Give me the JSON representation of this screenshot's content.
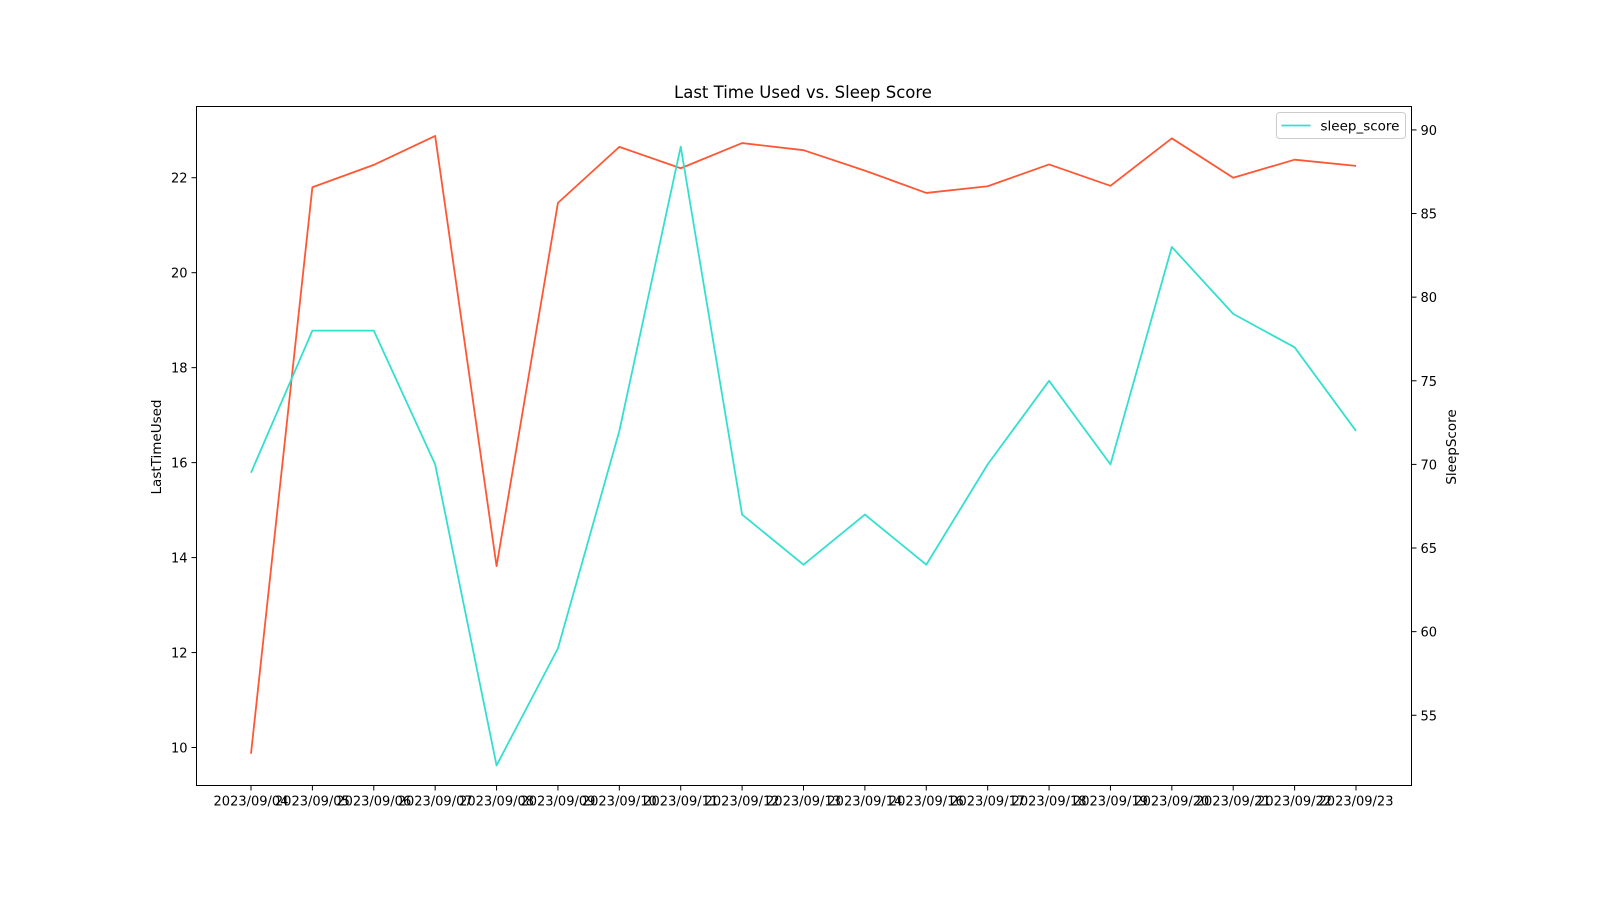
{
  "chart_data": {
    "type": "line",
    "title": "Last Time Used vs. Sleep Score",
    "xlabel": "",
    "categories": [
      "2023/09/04",
      "2023/09/05",
      "2023/09/06",
      "2023/09/07",
      "2023/09/08",
      "2023/09/09",
      "2023/09/10",
      "2023/09/11",
      "2023/09/12",
      "2023/09/13",
      "2023/09/14",
      "2023/09/16",
      "2023/09/17",
      "2023/09/18",
      "2023/09/19",
      "2023/09/20",
      "2023/09/21",
      "2023/09/22",
      "2023/09/23"
    ],
    "left_axis": {
      "label": "LastTimeUsed",
      "ylim": [
        9.2,
        23.5
      ],
      "ticks": [
        10,
        12,
        14,
        16,
        18,
        20,
        22
      ]
    },
    "right_axis": {
      "label": "SleepScore",
      "ylim": [
        50.8,
        91.4
      ],
      "ticks": [
        55,
        60,
        65,
        70,
        75,
        80,
        85,
        90
      ]
    },
    "series": [
      {
        "axis": "left",
        "color": "#ff5733",
        "values": [
          9.87,
          21.8,
          22.27,
          22.88,
          13.82,
          21.47,
          22.65,
          22.2,
          22.73,
          22.58,
          22.15,
          21.68,
          21.82,
          22.28,
          21.83,
          22.83,
          22.0,
          22.38,
          22.25
        ]
      },
      {
        "name": "sleep_score",
        "axis": "right",
        "color": "#33e0d0",
        "values": [
          69.5,
          78,
          78,
          70,
          52,
          59,
          72,
          89,
          67,
          64,
          67,
          64,
          70,
          75,
          70,
          83,
          79,
          77,
          72
        ]
      }
    ],
    "legend": {
      "position": "top-right",
      "entries": [
        "sleep_score"
      ]
    },
    "grid": false
  }
}
